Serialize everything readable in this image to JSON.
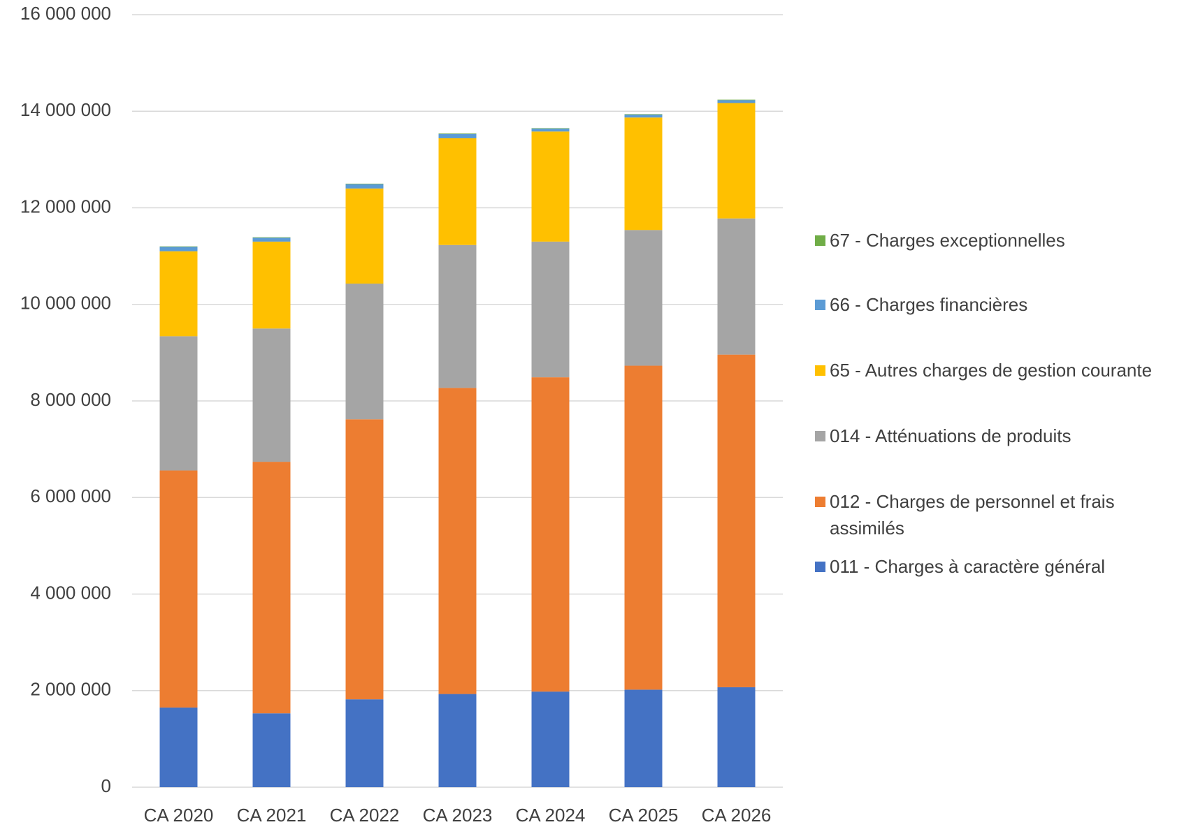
{
  "chart_data": {
    "type": "stacked_bar",
    "categories": [
      "CA 2020",
      "CA 2021",
      "CA 2022",
      "CA 2023",
      "CA 2024",
      "CA 2025",
      "CA 2026"
    ],
    "series": [
      {
        "name": "011 - Charges à caractère général",
        "color": "#4472c4",
        "values": [
          1650000,
          1530000,
          1820000,
          1930000,
          1980000,
          2020000,
          2070000
        ]
      },
      {
        "name": "012 - Charges de personnel et frais assimilés",
        "color": "#ed7d31",
        "values": [
          4910000,
          5210000,
          5800000,
          6340000,
          6510000,
          6710000,
          6890000
        ]
      },
      {
        "name": "014 - Atténuations de produits",
        "color": "#a5a5a5",
        "values": [
          2780000,
          2760000,
          2810000,
          2960000,
          2810000,
          2810000,
          2820000
        ]
      },
      {
        "name": "65 - Autres charges de gestion courante",
        "color": "#ffc000",
        "values": [
          1760000,
          1800000,
          1970000,
          2210000,
          2280000,
          2330000,
          2390000
        ]
      },
      {
        "name": "66 - Charges financières",
        "color": "#5b9bd5",
        "values": [
          90000,
          80000,
          90000,
          90000,
          60000,
          60000,
          60000
        ]
      },
      {
        "name": "67 - Charges exceptionnelles",
        "color": "#70ad47",
        "values": [
          10000,
          10000,
          10000,
          10000,
          10000,
          10000,
          10000
        ]
      }
    ],
    "ylim": [
      0,
      16000000
    ],
    "yticks": [
      0,
      {
        "value": 2000000,
        "label": "2 000 000"
      },
      {
        "value": 4000000,
        "label": "4 000 000"
      },
      {
        "value": 6000000,
        "label": "6 000 000"
      },
      {
        "value": 8000000,
        "label": "8 000 000"
      },
      {
        "value": 10000000,
        "label": "10 000 000"
      },
      {
        "value": 12000000,
        "label": "12 000 000"
      },
      {
        "value": 14000000,
        "label": "14 000 000"
      },
      {
        "value": 16000000,
        "label": "16 000 000"
      }
    ],
    "grid": true
  }
}
